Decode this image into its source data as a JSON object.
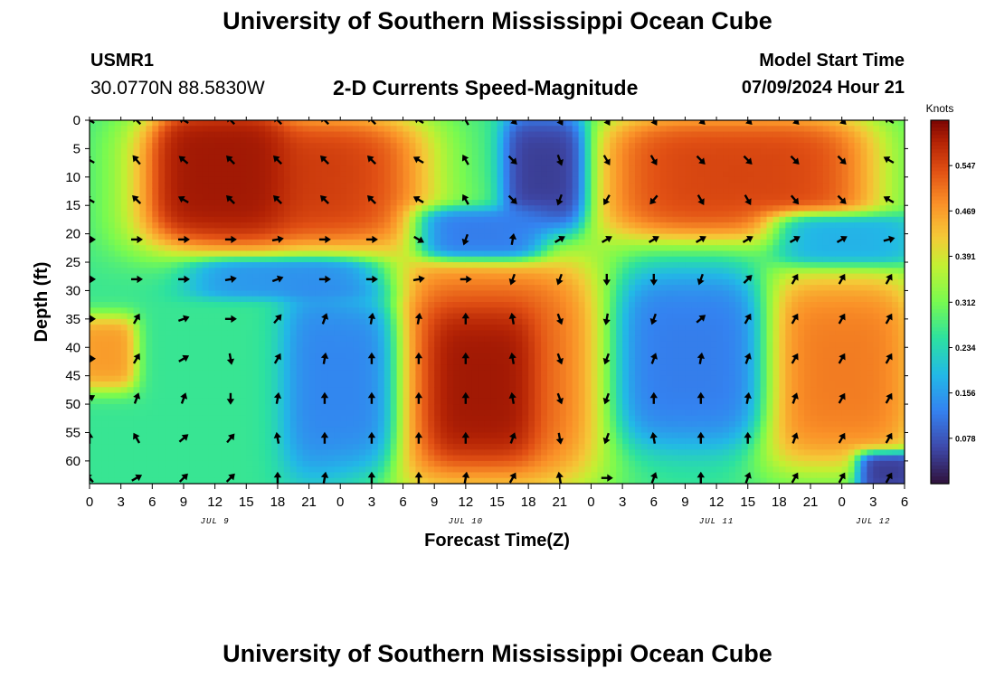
{
  "header": {
    "title": "University of Southern Mississippi Ocean Cube",
    "station": "USMR1",
    "coords": "30.0770N  88.5830W",
    "subtitle": "2-D Currents Speed-Magnitude",
    "model_start_label": "Model Start Time",
    "model_start_value": "07/09/2024 Hour 21"
  },
  "footer": {
    "title": "University of Southern Mississippi Ocean Cube"
  },
  "chart_data": {
    "type": "heatmap",
    "title": "2-D Currents Speed-Magnitude",
    "xlabel": "Forecast Time(Z)",
    "ylabel": "Depth (ft)",
    "colorbar_label": "Knots",
    "xlim": [
      0,
      78
    ],
    "ylim": [
      0,
      64
    ],
    "x_tick_labels": [
      "0",
      "3",
      "6",
      "9",
      "12",
      "15",
      "18",
      "21",
      "0",
      "3",
      "6",
      "9",
      "12",
      "15",
      "18",
      "21",
      "0",
      "3",
      "6",
      "9",
      "12",
      "15",
      "18",
      "21",
      "0",
      "3",
      "6"
    ],
    "y_ticks": [
      0,
      5,
      10,
      15,
      20,
      25,
      30,
      35,
      40,
      45,
      50,
      55,
      60
    ],
    "date_labels": [
      {
        "hour": 12,
        "label": "JUL 9"
      },
      {
        "hour": 36,
        "label": "JUL 10"
      },
      {
        "hour": 60,
        "label": "JUL 11"
      },
      {
        "hour": 75,
        "label": "JUL 12"
      }
    ],
    "colorbar_ticks": [
      0.078,
      0.156,
      0.234,
      0.312,
      0.391,
      0.469,
      0.547
    ],
    "colorbar_range": [
      0,
      0.625
    ],
    "speed_features_knots": [
      {
        "hours": [
          6,
          31
        ],
        "depth": [
          0,
          22
        ],
        "speed": 0.56
      },
      {
        "hours": [
          8,
          17
        ],
        "depth": [
          0,
          18
        ],
        "speed": 0.6
      },
      {
        "hours": [
          50,
          74
        ],
        "depth": [
          0,
          20
        ],
        "speed": 0.55
      },
      {
        "hours": [
          27,
          48
        ],
        "depth": [
          24,
          64
        ],
        "speed": 0.52
      },
      {
        "hours": [
          34,
          41
        ],
        "depth": [
          35,
          58
        ],
        "speed": 0.6
      },
      {
        "hours": [
          65,
          78
        ],
        "depth": [
          28,
          60
        ],
        "speed": 0.5
      },
      {
        "hours": [
          0,
          3
        ],
        "depth": [
          36,
          46
        ],
        "speed": 0.47
      },
      {
        "hours": [
          41,
          46
        ],
        "depth": [
          0,
          18
        ],
        "speed": 0.05
      },
      {
        "hours": [
          33,
          42
        ],
        "depth": [
          17,
          23
        ],
        "speed": 0.12
      },
      {
        "hours": [
          11,
          26
        ],
        "depth": [
          26,
          30
        ],
        "speed": 0.15
      },
      {
        "hours": [
          20,
          28
        ],
        "depth": [
          30,
          62
        ],
        "speed": 0.13
      },
      {
        "hours": [
          52,
          63
        ],
        "depth": [
          28,
          56
        ],
        "speed": 0.12
      },
      {
        "hours": [
          67,
          78
        ],
        "depth": [
          18,
          24
        ],
        "speed": 0.18
      },
      {
        "hours": [
          75,
          78
        ],
        "depth": [
          60,
          64
        ],
        "speed": 0.05
      }
    ],
    "background_speed_knots": 0.26,
    "vector_hours": [
      0,
      4.5,
      9,
      13.5,
      18,
      22.5,
      27,
      31.5,
      36,
      40.5,
      45,
      49.5,
      54,
      58.5,
      63,
      67.5,
      72,
      76.5
    ],
    "vector_depths": [
      0,
      7,
      14,
      21,
      28,
      35,
      42,
      49,
      56,
      63
    ],
    "vector_directions_deg": [
      [
        300,
        315,
        300,
        315,
        315,
        315,
        315,
        300,
        330,
        135,
        150,
        150,
        150,
        135,
        135,
        135,
        135,
        300
      ],
      [
        300,
        320,
        310,
        315,
        315,
        315,
        315,
        300,
        330,
        135,
        160,
        150,
        150,
        135,
        135,
        135,
        135,
        300
      ],
      [
        300,
        315,
        300,
        315,
        315,
        315,
        315,
        300,
        330,
        135,
        200,
        210,
        220,
        150,
        150,
        140,
        135,
        300
      ],
      [
        90,
        90,
        90,
        90,
        80,
        90,
        90,
        120,
        200,
        10,
        60,
        60,
        60,
        60,
        60,
        60,
        60,
        75
      ],
      [
        90,
        90,
        90,
        80,
        70,
        90,
        90,
        80,
        90,
        200,
        200,
        180,
        180,
        200,
        45,
        30,
        30,
        30
      ],
      [
        90,
        30,
        70,
        90,
        40,
        20,
        10,
        10,
        0,
        350,
        160,
        190,
        200,
        50,
        30,
        30,
        30,
        30
      ],
      [
        90,
        30,
        60,
        170,
        30,
        10,
        0,
        0,
        0,
        350,
        160,
        200,
        20,
        10,
        20,
        30,
        30,
        30
      ],
      [
        60,
        20,
        20,
        180,
        10,
        0,
        0,
        0,
        0,
        350,
        160,
        200,
        0,
        0,
        10,
        20,
        30,
        30
      ],
      [
        0,
        330,
        50,
        40,
        350,
        0,
        0,
        0,
        0,
        20,
        170,
        200,
        350,
        0,
        0,
        20,
        30,
        30
      ],
      [
        320,
        60,
        45,
        45,
        0,
        10,
        0,
        0,
        10,
        30,
        350,
        90,
        20,
        0,
        20,
        30,
        30,
        30
      ]
    ]
  }
}
